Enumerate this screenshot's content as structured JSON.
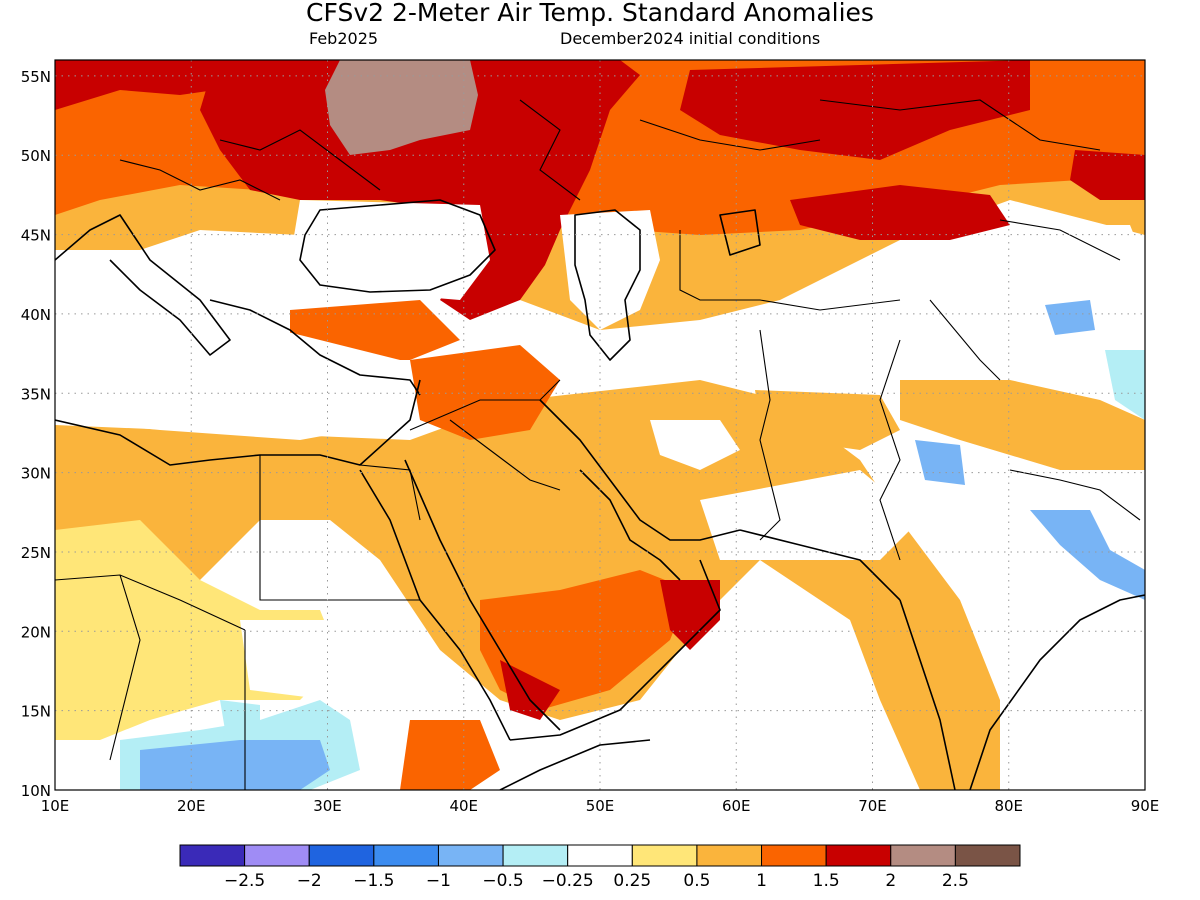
{
  "title": "CFSv2 2-Meter Air Temp. Standard Anomalies",
  "valid_month": "Feb2025",
  "initial_conditions": "December2024 initial conditions",
  "map": {
    "lon_ticks": [
      "10E",
      "20E",
      "30E",
      "40E",
      "50E",
      "60E",
      "70E",
      "80E",
      "90E"
    ],
    "lat_ticks": [
      "55N",
      "50N",
      "45N",
      "40N",
      "35N",
      "30N",
      "25N",
      "20N",
      "15N",
      "10N"
    ],
    "lon_range": [
      10,
      90
    ],
    "lat_range": [
      10,
      56
    ],
    "gridlines": true
  },
  "legend": {
    "colors": [
      "#3a2ab8",
      "#9f8cf5",
      "#1f64e0",
      "#3c8cf0",
      "#78b4f5",
      "#b4eef5",
      "#ffffff",
      "#ffe678",
      "#fab43c",
      "#fa6400",
      "#c80000",
      "#b48c82",
      "#7a5446"
    ],
    "labels": [
      "-2.5",
      "-2",
      "-1.5",
      "-1",
      "-0.5",
      "-0.25",
      "0.25",
      "0.5",
      "1",
      "1.5",
      "2",
      "2.5"
    ]
  }
}
